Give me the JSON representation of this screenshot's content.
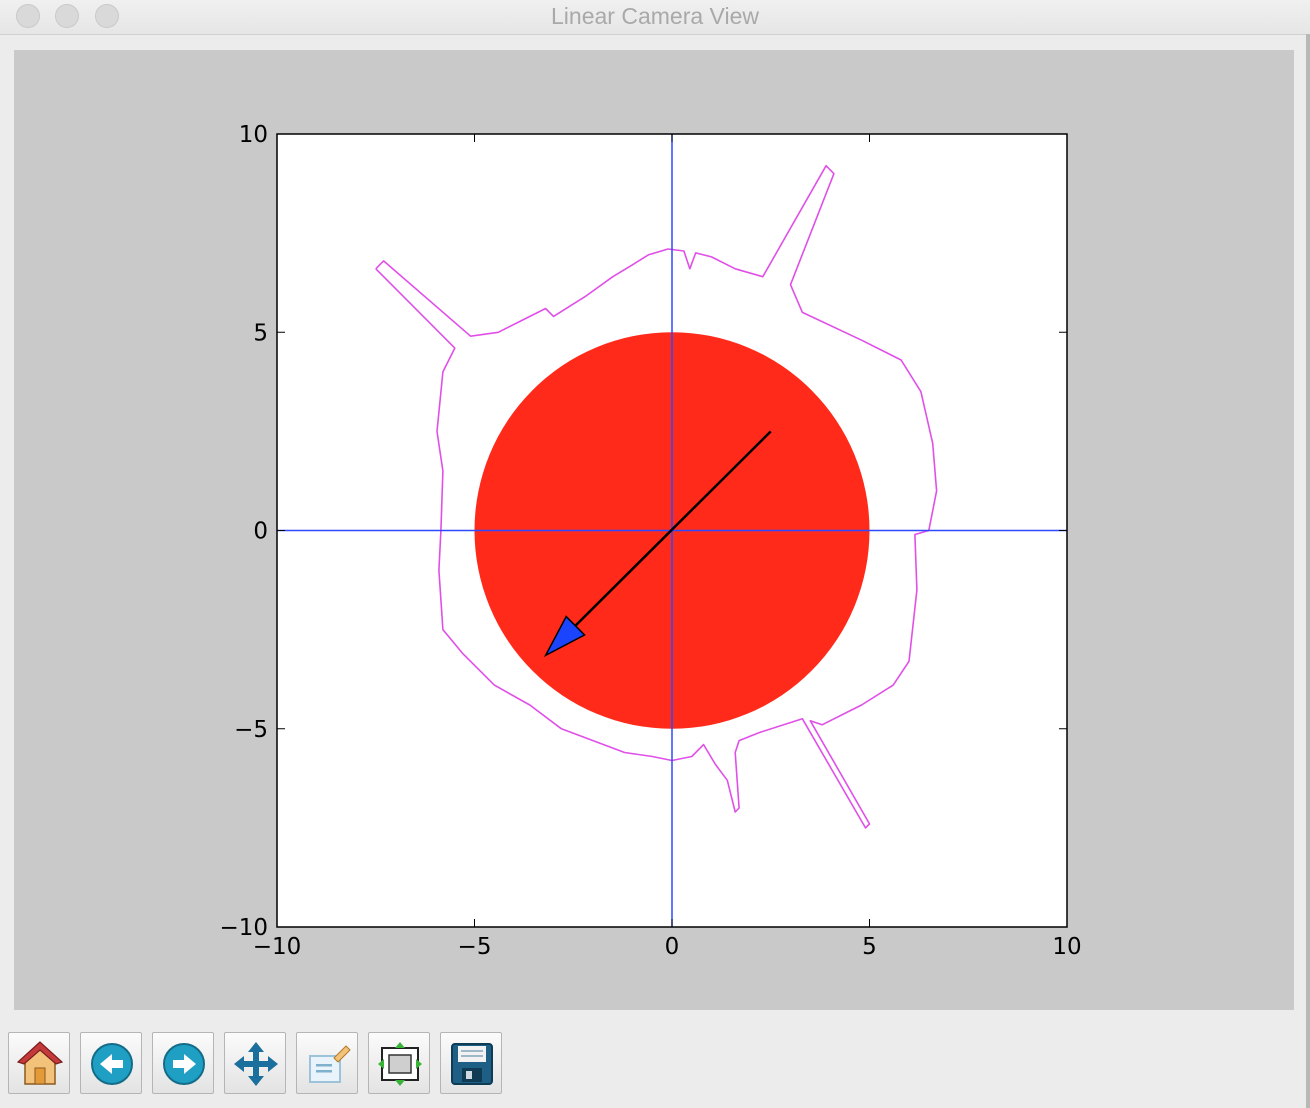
{
  "window": {
    "title": "Linear Camera View"
  },
  "chart_data": {
    "type": "scatter",
    "title": "",
    "xlabel": "",
    "ylabel": "",
    "xlim": [
      -10,
      10
    ],
    "ylim": [
      -10,
      10
    ],
    "xticks": [
      -10,
      -5,
      0,
      5,
      10
    ],
    "yticks": [
      -10,
      -5,
      0,
      5,
      10
    ],
    "xtick_labels": [
      "−10",
      "−5",
      "0",
      "5",
      "10"
    ],
    "ytick_labels": [
      "−10",
      "−5",
      "0",
      "5",
      "10"
    ],
    "grid": false,
    "axis_lines": {
      "x": 0,
      "y": 0,
      "color": "#2e49ff"
    },
    "circle": {
      "center": [
        0,
        0
      ],
      "radius": 5,
      "color": "#ff2a1a"
    },
    "arrow": {
      "start": [
        2.5,
        2.5
      ],
      "end": [
        -3.2,
        -3.15
      ],
      "line_color": "#000000",
      "head_color": "#1a44ff"
    },
    "boundary": {
      "color": "#e050e8",
      "points": [
        [
          -7.5,
          6.6
        ],
        [
          -7.3,
          6.8
        ],
        [
          -5.1,
          4.9
        ],
        [
          -4.4,
          5.0
        ],
        [
          -3.8,
          5.3
        ],
        [
          -3.2,
          5.6
        ],
        [
          -3.0,
          5.4
        ],
        [
          -2.2,
          5.9
        ],
        [
          -1.5,
          6.4
        ],
        [
          -1.0,
          6.7
        ],
        [
          -0.6,
          6.95
        ],
        [
          -0.1,
          7.1
        ],
        [
          0.3,
          7.05
        ],
        [
          0.45,
          6.6
        ],
        [
          0.6,
          7.0
        ],
        [
          1.0,
          6.9
        ],
        [
          1.6,
          6.6
        ],
        [
          2.3,
          6.4
        ],
        [
          3.9,
          9.2
        ],
        [
          4.1,
          9.0
        ],
        [
          3.0,
          6.2
        ],
        [
          3.3,
          5.5
        ],
        [
          4.8,
          4.8
        ],
        [
          5.8,
          4.3
        ],
        [
          6.3,
          3.5
        ],
        [
          6.6,
          2.2
        ],
        [
          6.7,
          1.0
        ],
        [
          6.5,
          0.0
        ],
        [
          6.15,
          -0.1
        ],
        [
          6.2,
          -1.5
        ],
        [
          6.0,
          -3.3
        ],
        [
          5.6,
          -3.9
        ],
        [
          4.8,
          -4.4
        ],
        [
          4.5,
          -4.55
        ],
        [
          3.8,
          -4.9
        ],
        [
          3.5,
          -4.8
        ],
        [
          5.0,
          -7.4
        ],
        [
          4.9,
          -7.5
        ],
        [
          3.3,
          -4.75
        ],
        [
          2.2,
          -5.1
        ],
        [
          1.7,
          -5.3
        ],
        [
          1.6,
          -5.6
        ],
        [
          1.7,
          -7.0
        ],
        [
          1.6,
          -7.1
        ],
        [
          1.4,
          -6.3
        ],
        [
          1.1,
          -5.9
        ],
        [
          0.8,
          -5.4
        ],
        [
          0.5,
          -5.7
        ],
        [
          0.0,
          -5.8
        ],
        [
          -0.5,
          -5.7
        ],
        [
          -1.2,
          -5.6
        ],
        [
          -2.0,
          -5.3
        ],
        [
          -2.8,
          -5.0
        ],
        [
          -3.6,
          -4.4
        ],
        [
          -4.5,
          -3.9
        ],
        [
          -5.3,
          -3.1
        ],
        [
          -5.8,
          -2.5
        ],
        [
          -5.9,
          -1.0
        ],
        [
          -5.85,
          0.0
        ],
        [
          -5.8,
          1.5
        ],
        [
          -5.95,
          2.5
        ],
        [
          -5.8,
          4.0
        ],
        [
          -5.5,
          4.6
        ],
        [
          -7.5,
          6.6
        ]
      ]
    }
  },
  "toolbar": {
    "buttons": [
      {
        "name": "home-button",
        "icon": "home-icon"
      },
      {
        "name": "back-button",
        "icon": "back-arrow-icon"
      },
      {
        "name": "forward-button",
        "icon": "forward-arrow-icon"
      },
      {
        "name": "pan-button",
        "icon": "pan-icon"
      },
      {
        "name": "zoom-button",
        "icon": "zoom-rect-icon"
      },
      {
        "name": "subplots-button",
        "icon": "subplots-icon"
      },
      {
        "name": "save-button",
        "icon": "save-icon"
      }
    ]
  }
}
